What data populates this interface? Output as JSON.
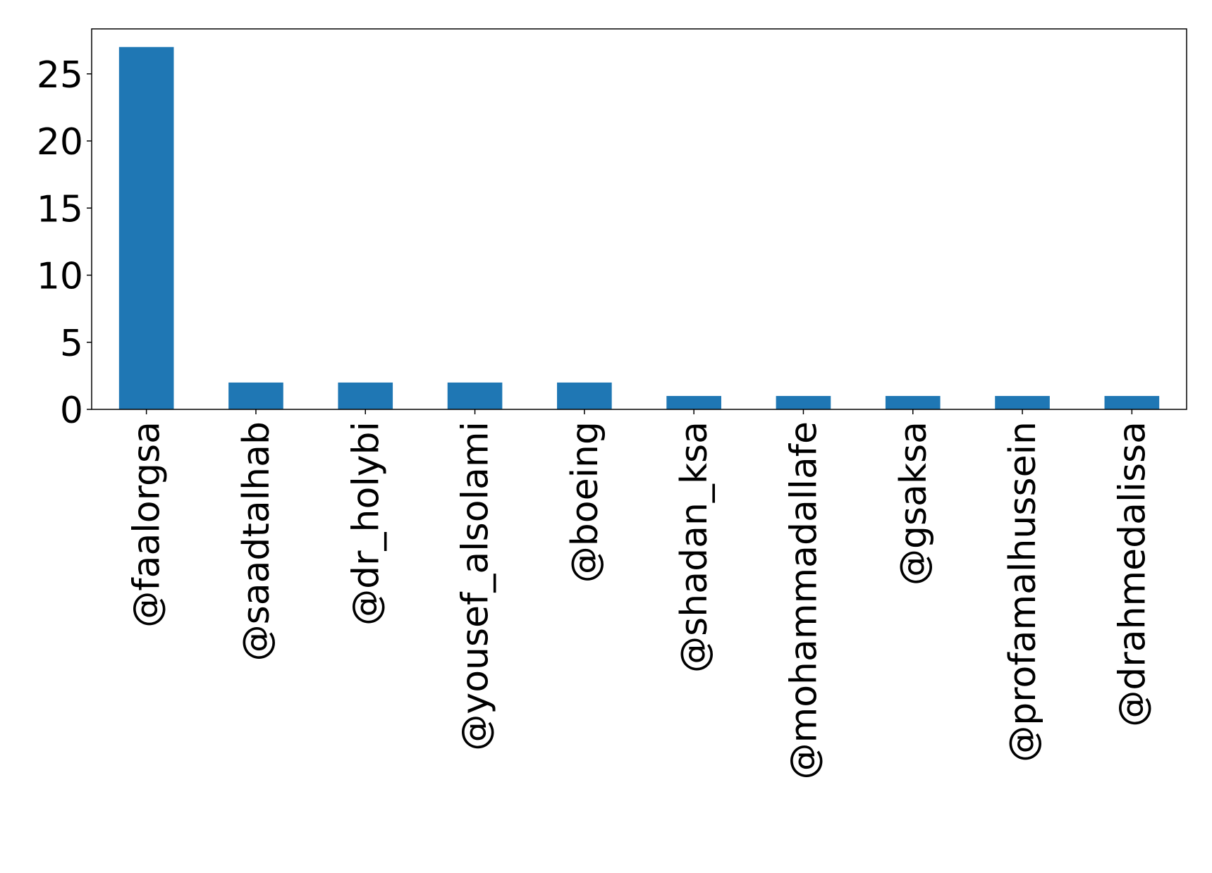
{
  "chart_data": {
    "type": "bar",
    "title": "",
    "xlabel": "",
    "ylabel": "",
    "categories": [
      "@faalorgsa",
      "@saadtalhab",
      "@dr_holybi",
      "@yousef_alsolami",
      "@boeing",
      "@shadan_ksa",
      "@mohammadallafe",
      "@gsaksa",
      "@profamalhussein",
      "@drahmedalissa"
    ],
    "values": [
      27,
      2,
      2,
      2,
      2,
      1,
      1,
      1,
      1,
      1
    ],
    "ylim": [
      0,
      28.35
    ],
    "yticks": [
      0,
      5,
      10,
      15,
      20,
      25
    ],
    "bar_color": "#1f77b4",
    "grid": false,
    "legend": "none"
  }
}
